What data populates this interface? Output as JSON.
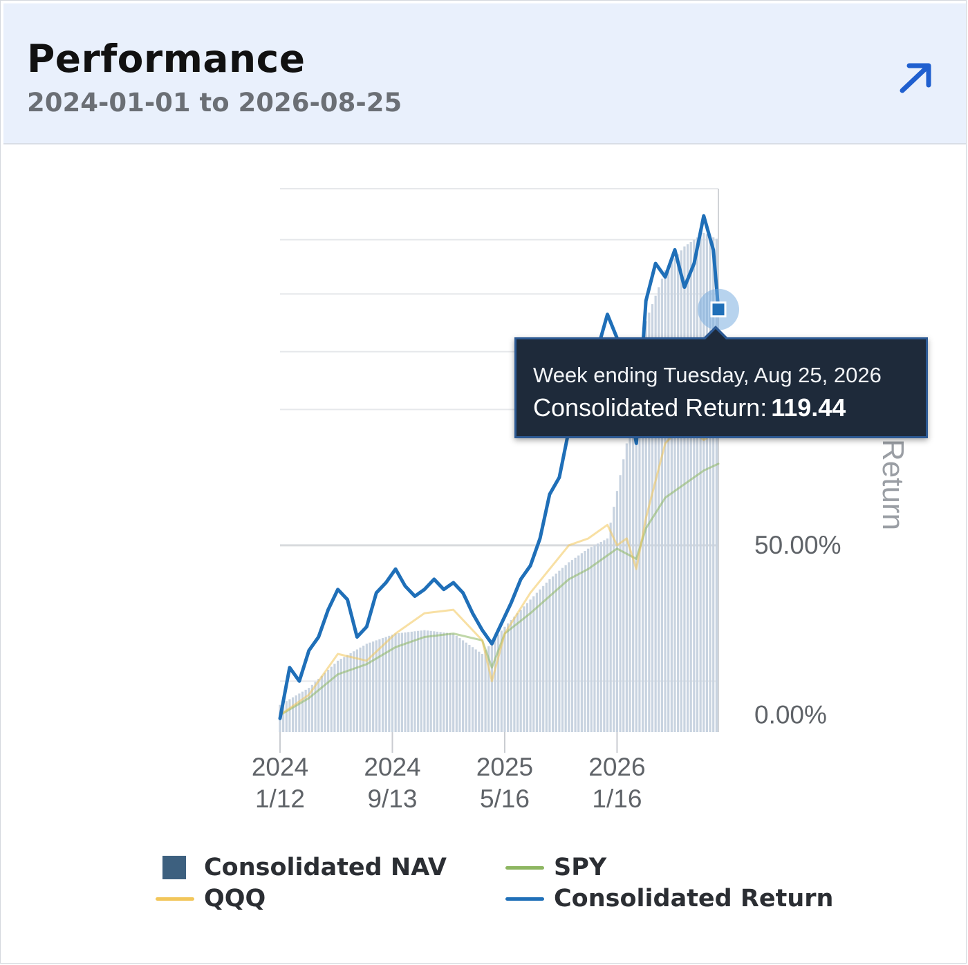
{
  "header": {
    "title": "Performance",
    "date_range": "2024-01-01 to 2026-08-25"
  },
  "icons": {
    "expand": "arrow-up-right-icon"
  },
  "tooltip": {
    "line1": "Week ending Tuesday, Aug 25, 2026",
    "label": "Consolidated Return:",
    "value": "119.44"
  },
  "colors": {
    "return": "#1f6fb8",
    "qqq": "#f2c65a",
    "spy": "#8db661",
    "nav": "#3d607f",
    "nav_bar": "#c8d3e0",
    "header_bg": "#e9f0fc",
    "tooltip_bg": "#1e2a3a"
  },
  "chart_data": {
    "type": "line",
    "ylabel": "Return",
    "y_tick_labels": [
      "0.00%",
      "50.00%"
    ],
    "ylim": [
      -5,
      155
    ],
    "x_axis_type": "date",
    "x_tick_labels": [
      {
        "top": "2024",
        "bottom": "1/12",
        "date": "2024-01-12"
      },
      {
        "top": "2024",
        "bottom": "9/13",
        "date": "2024-09-13"
      },
      {
        "top": "2025",
        "bottom": "5/16",
        "date": "2025-05-16"
      },
      {
        "top": "2026",
        "bottom": "1/16",
        "date": "2026-01-16"
      }
    ],
    "xlim": [
      "2024-01-12",
      "2026-08-25"
    ],
    "legend": [
      "Consolidated NAV",
      "SPY",
      "QQQ",
      "Consolidated Return"
    ],
    "legend_position": "bottom",
    "grid": true,
    "series": [
      {
        "name": "Consolidated Return",
        "color": "#1f6fb8",
        "points": [
          [
            "2024-01-12",
            -1
          ],
          [
            "2024-02-02",
            14
          ],
          [
            "2024-02-23",
            10
          ],
          [
            "2024-03-15",
            19
          ],
          [
            "2024-04-05",
            23
          ],
          [
            "2024-04-26",
            31
          ],
          [
            "2024-05-17",
            37
          ],
          [
            "2024-06-07",
            34
          ],
          [
            "2024-06-28",
            23
          ],
          [
            "2024-07-19",
            26
          ],
          [
            "2024-08-09",
            36
          ],
          [
            "2024-08-30",
            39
          ],
          [
            "2024-09-20",
            43
          ],
          [
            "2024-10-11",
            38
          ],
          [
            "2024-11-01",
            35
          ],
          [
            "2024-11-22",
            37
          ],
          [
            "2024-12-13",
            40
          ],
          [
            "2025-01-03",
            37
          ],
          [
            "2025-01-24",
            39
          ],
          [
            "2025-02-14",
            36
          ],
          [
            "2025-03-07",
            30
          ],
          [
            "2025-03-28",
            25
          ],
          [
            "2025-04-18",
            21
          ],
          [
            "2025-05-09",
            27
          ],
          [
            "2025-05-30",
            33
          ],
          [
            "2025-06-20",
            40
          ],
          [
            "2025-07-11",
            44
          ],
          [
            "2025-08-01",
            52
          ],
          [
            "2025-08-22",
            65
          ],
          [
            "2025-09-12",
            70
          ],
          [
            "2025-10-03",
            84
          ],
          [
            "2025-10-24",
            92
          ],
          [
            "2025-11-14",
            103
          ],
          [
            "2025-12-05",
            108
          ],
          [
            "2025-12-26",
            118
          ],
          [
            "2026-01-16",
            111
          ],
          [
            "2026-02-06",
            97
          ],
          [
            "2026-02-27",
            80
          ],
          [
            "2026-03-20",
            122
          ],
          [
            "2026-04-10",
            133
          ],
          [
            "2026-05-01",
            129
          ],
          [
            "2026-05-22",
            137
          ],
          [
            "2026-06-12",
            126
          ],
          [
            "2026-07-03",
            133
          ],
          [
            "2026-07-24",
            147
          ],
          [
            "2026-08-14",
            137
          ],
          [
            "2026-08-25",
            119.44
          ]
        ]
      },
      {
        "name": "QQQ",
        "color": "#f2c65a",
        "points": [
          [
            "2024-01-12",
            0
          ],
          [
            "2024-03-15",
            6
          ],
          [
            "2024-05-17",
            18
          ],
          [
            "2024-07-19",
            16
          ],
          [
            "2024-09-20",
            24
          ],
          [
            "2024-11-22",
            30
          ],
          [
            "2025-01-24",
            31
          ],
          [
            "2025-03-28",
            22
          ],
          [
            "2025-04-18",
            10
          ],
          [
            "2025-05-16",
            24
          ],
          [
            "2025-07-11",
            36
          ],
          [
            "2025-08-22",
            43
          ],
          [
            "2025-10-03",
            50
          ],
          [
            "2025-11-14",
            52
          ],
          [
            "2025-12-26",
            56
          ],
          [
            "2026-01-16",
            50
          ],
          [
            "2026-02-06",
            52
          ],
          [
            "2026-02-27",
            43
          ],
          [
            "2026-03-20",
            58
          ],
          [
            "2026-05-01",
            80
          ],
          [
            "2026-06-12",
            86
          ],
          [
            "2026-07-24",
            81
          ],
          [
            "2026-08-25",
            84
          ]
        ]
      },
      {
        "name": "SPY",
        "color": "#8db661",
        "points": [
          [
            "2024-01-12",
            0
          ],
          [
            "2024-03-15",
            5
          ],
          [
            "2024-05-17",
            12
          ],
          [
            "2024-07-19",
            15
          ],
          [
            "2024-09-20",
            20
          ],
          [
            "2024-11-22",
            23
          ],
          [
            "2025-01-24",
            24
          ],
          [
            "2025-03-28",
            22
          ],
          [
            "2025-04-18",
            14
          ],
          [
            "2025-05-16",
            24
          ],
          [
            "2025-07-11",
            30
          ],
          [
            "2025-08-22",
            35
          ],
          [
            "2025-10-03",
            40
          ],
          [
            "2025-11-14",
            43
          ],
          [
            "2025-12-26",
            47
          ],
          [
            "2026-01-16",
            49
          ],
          [
            "2026-02-27",
            46
          ],
          [
            "2026-03-20",
            55
          ],
          [
            "2026-05-01",
            64
          ],
          [
            "2026-06-12",
            68
          ],
          [
            "2026-07-24",
            72
          ],
          [
            "2026-08-25",
            74
          ]
        ]
      },
      {
        "name": "Consolidated NAV",
        "color": "#c8d3e0",
        "display": "bars",
        "points": [
          [
            "2024-01-12",
            3
          ],
          [
            "2024-03-15",
            8
          ],
          [
            "2024-05-17",
            16
          ],
          [
            "2024-07-19",
            21
          ],
          [
            "2024-09-20",
            24
          ],
          [
            "2024-11-22",
            25
          ],
          [
            "2025-01-24",
            24
          ],
          [
            "2025-03-28",
            18
          ],
          [
            "2025-05-16",
            26
          ],
          [
            "2025-07-11",
            34
          ],
          [
            "2025-08-22",
            40
          ],
          [
            "2025-10-03",
            45
          ],
          [
            "2025-11-14",
            49
          ],
          [
            "2025-12-26",
            52
          ],
          [
            "2026-01-16",
            66
          ],
          [
            "2026-02-27",
            94
          ],
          [
            "2026-03-20",
            116
          ],
          [
            "2026-05-01",
            131
          ],
          [
            "2026-06-12",
            138
          ],
          [
            "2026-07-24",
            142
          ],
          [
            "2026-08-25",
            140
          ]
        ]
      }
    ],
    "hover": {
      "series": "Consolidated Return",
      "date": "2026-08-25",
      "value": 119.44
    }
  },
  "legend": {
    "nav": "Consolidated NAV",
    "spy": "SPY",
    "qqq": "QQQ",
    "return": "Consolidated Return"
  }
}
